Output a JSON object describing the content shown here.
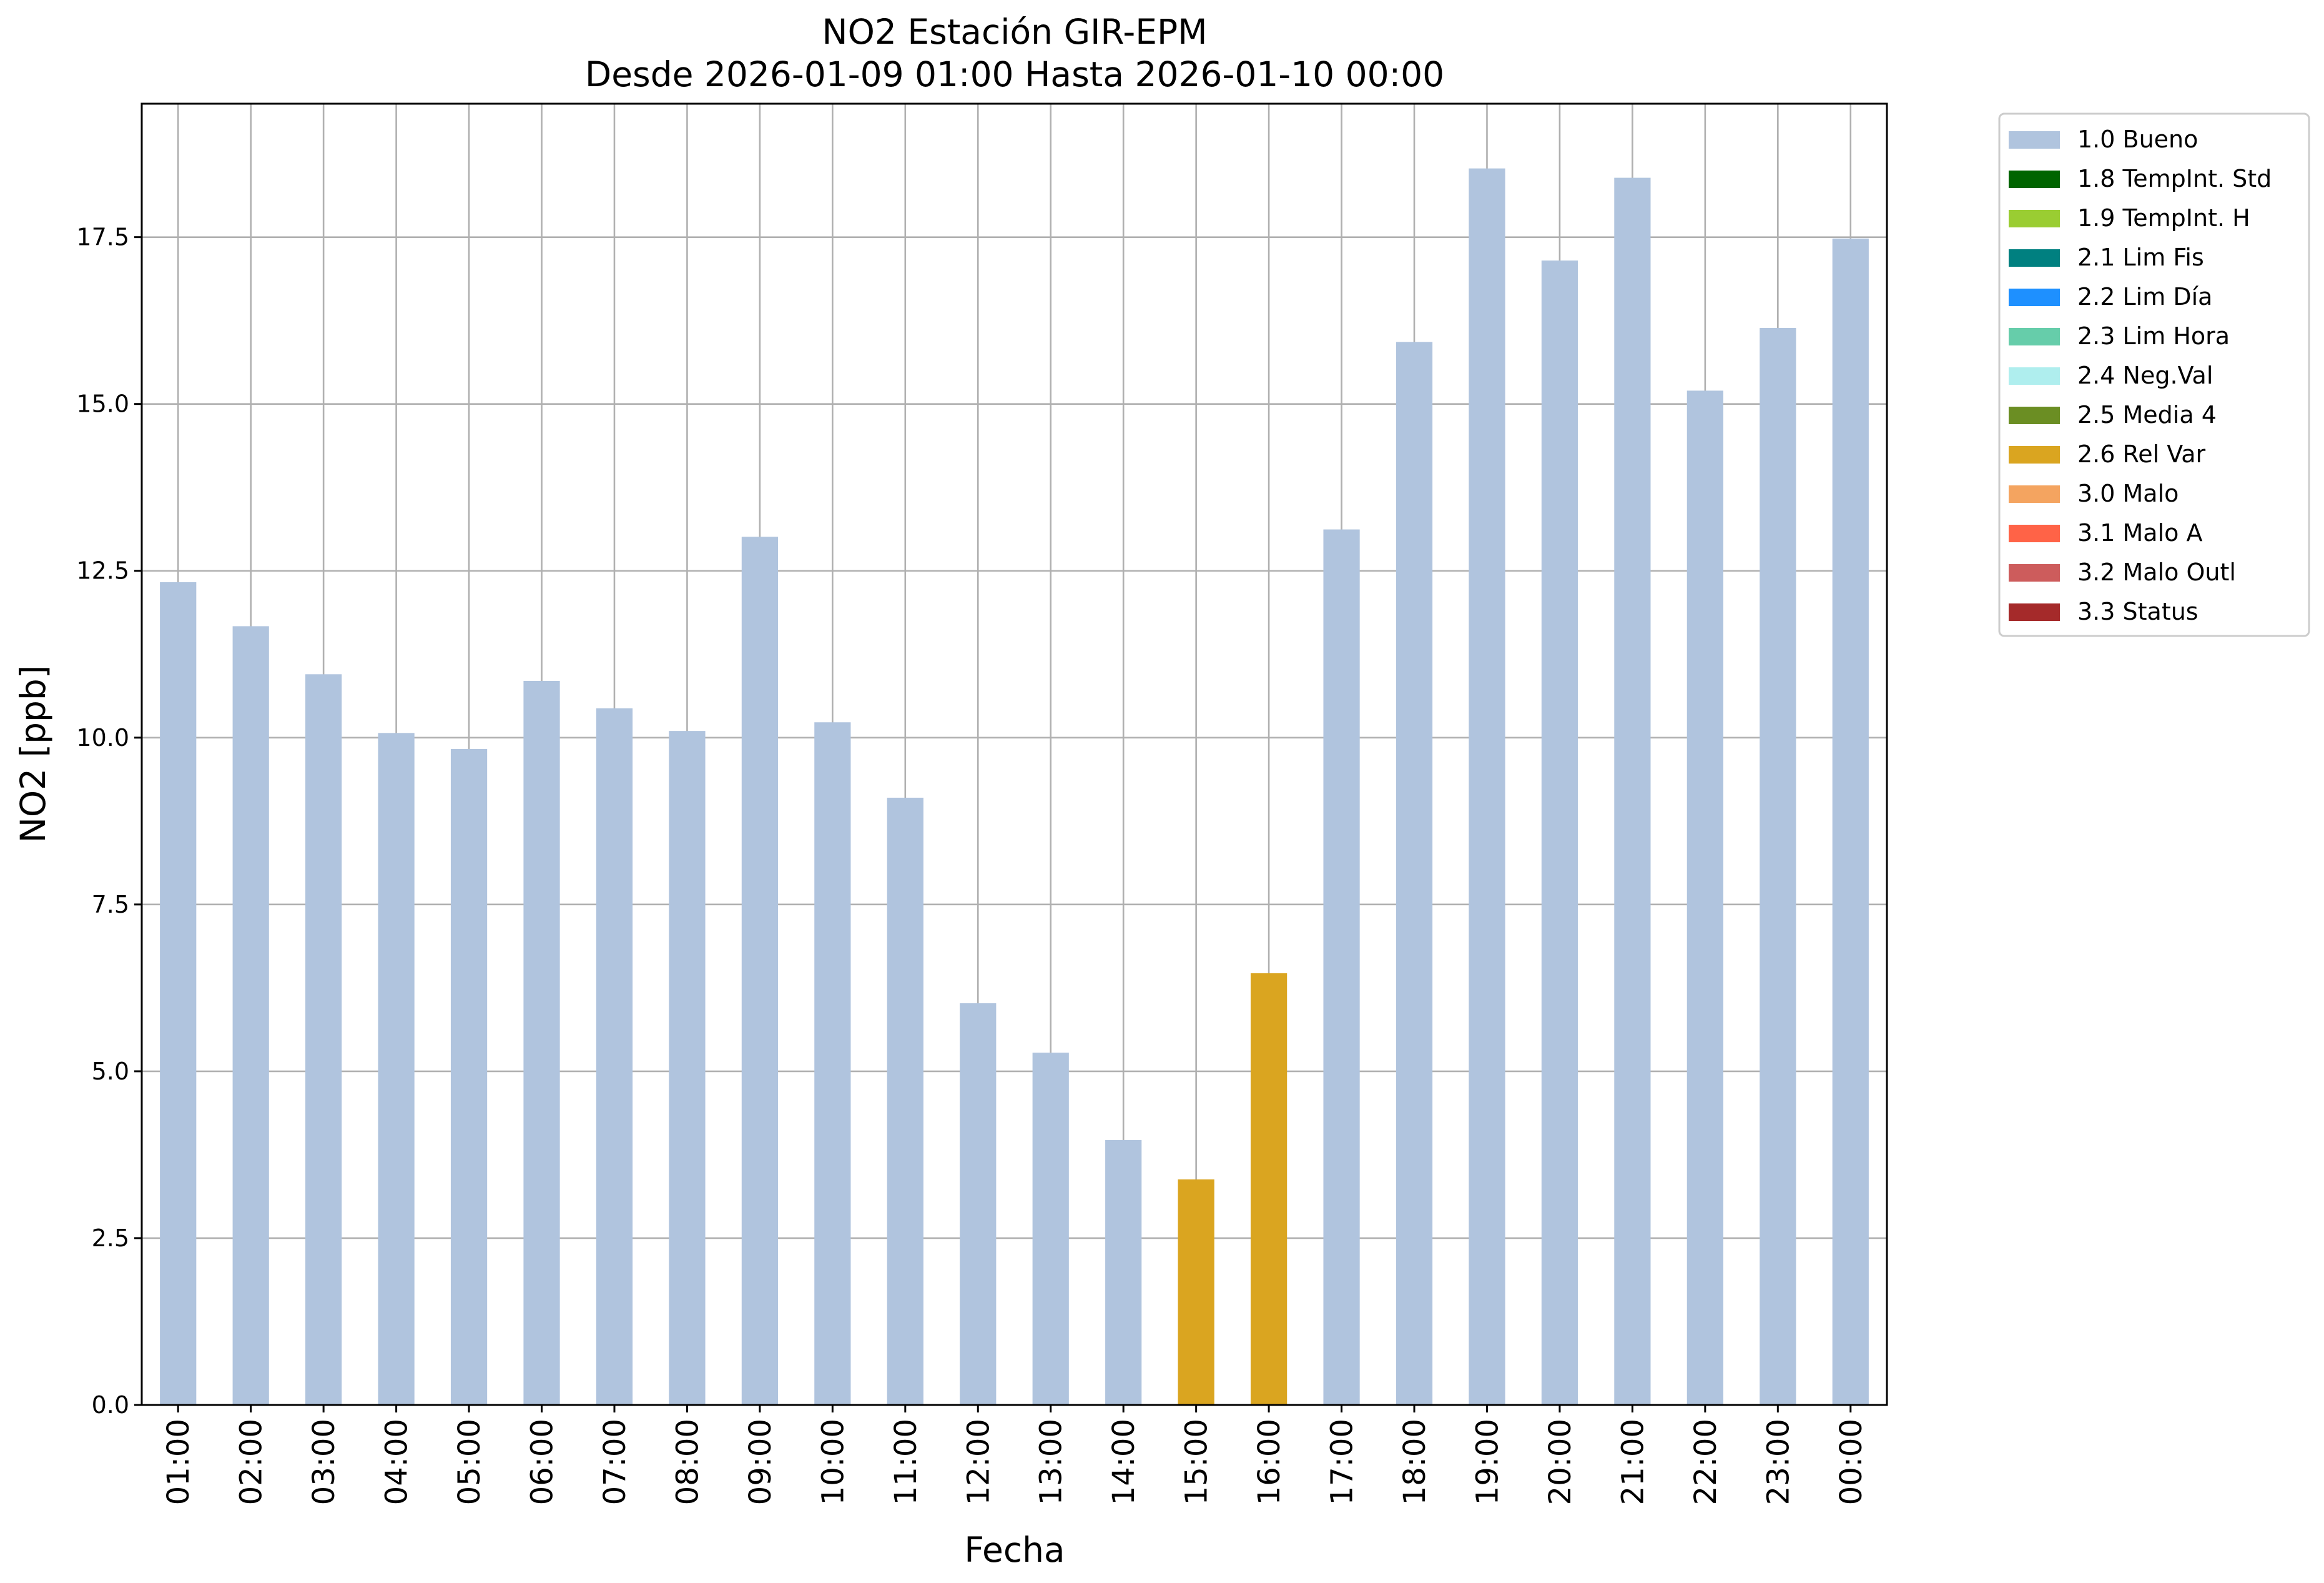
{
  "chart_data": {
    "type": "bar",
    "title": "NO2 Estación GIR-EPM",
    "subtitle": "Desde 2026-01-09 01:00 Hasta 2026-01-10 00:00",
    "xlabel": "Fecha",
    "ylabel": "NO2 [ppb]",
    "ylim": [
      0,
      19.5
    ],
    "yticks": [
      "0.0",
      "2.5",
      "5.0",
      "7.5",
      "10.0",
      "12.5",
      "15.0",
      "17.5"
    ],
    "grid": true,
    "legend_position": "outside-top-right",
    "categories": [
      "01:00",
      "02:00",
      "03:00",
      "04:00",
      "05:00",
      "06:00",
      "07:00",
      "08:00",
      "09:00",
      "10:00",
      "11:00",
      "12:00",
      "13:00",
      "14:00",
      "15:00",
      "16:00",
      "17:00",
      "18:00",
      "19:00",
      "20:00",
      "21:00",
      "22:00",
      "23:00",
      "00:00"
    ],
    "values": [
      12.33,
      11.67,
      10.95,
      10.07,
      9.83,
      10.85,
      10.44,
      10.1,
      13.01,
      10.23,
      9.1,
      6.02,
      5.28,
      3.97,
      3.38,
      6.47,
      13.12,
      15.93,
      18.53,
      17.15,
      18.39,
      15.2,
      16.14,
      17.48
    ],
    "flags": [
      "1.0 Bueno",
      "1.0 Bueno",
      "1.0 Bueno",
      "1.0 Bueno",
      "1.0 Bueno",
      "1.0 Bueno",
      "1.0 Bueno",
      "1.0 Bueno",
      "1.0 Bueno",
      "1.0 Bueno",
      "1.0 Bueno",
      "1.0 Bueno",
      "1.0 Bueno",
      "1.0 Bueno",
      "2.6 Rel Var",
      "2.6 Rel Var",
      "1.0 Bueno",
      "1.0 Bueno",
      "1.0 Bueno",
      "1.0 Bueno",
      "1.0 Bueno",
      "1.0 Bueno",
      "1.0 Bueno",
      "1.0 Bueno"
    ],
    "legend": [
      {
        "label": "1.0 Bueno",
        "color": "#b0c4de"
      },
      {
        "label": "1.8 TempInt. Std",
        "color": "#006400"
      },
      {
        "label": "1.9 TempInt. H",
        "color": "#9acd32"
      },
      {
        "label": "2.1 Lim Fis",
        "color": "#008080"
      },
      {
        "label": "2.2 Lim Día",
        "color": "#1e90ff"
      },
      {
        "label": "2.3 Lim Hora",
        "color": "#66cdaa"
      },
      {
        "label": "2.4 Neg.Val",
        "color": "#afeeee"
      },
      {
        "label": "2.5 Media 4",
        "color": "#6b8e23"
      },
      {
        "label": "2.6 Rel Var",
        "color": "#daa520"
      },
      {
        "label": "3.0 Malo",
        "color": "#f4a460"
      },
      {
        "label": "3.1 Malo A",
        "color": "#ff6347"
      },
      {
        "label": "3.2 Malo Outl",
        "color": "#cd5c5c"
      },
      {
        "label": "3.3 Status",
        "color": "#a52a2a"
      }
    ]
  }
}
